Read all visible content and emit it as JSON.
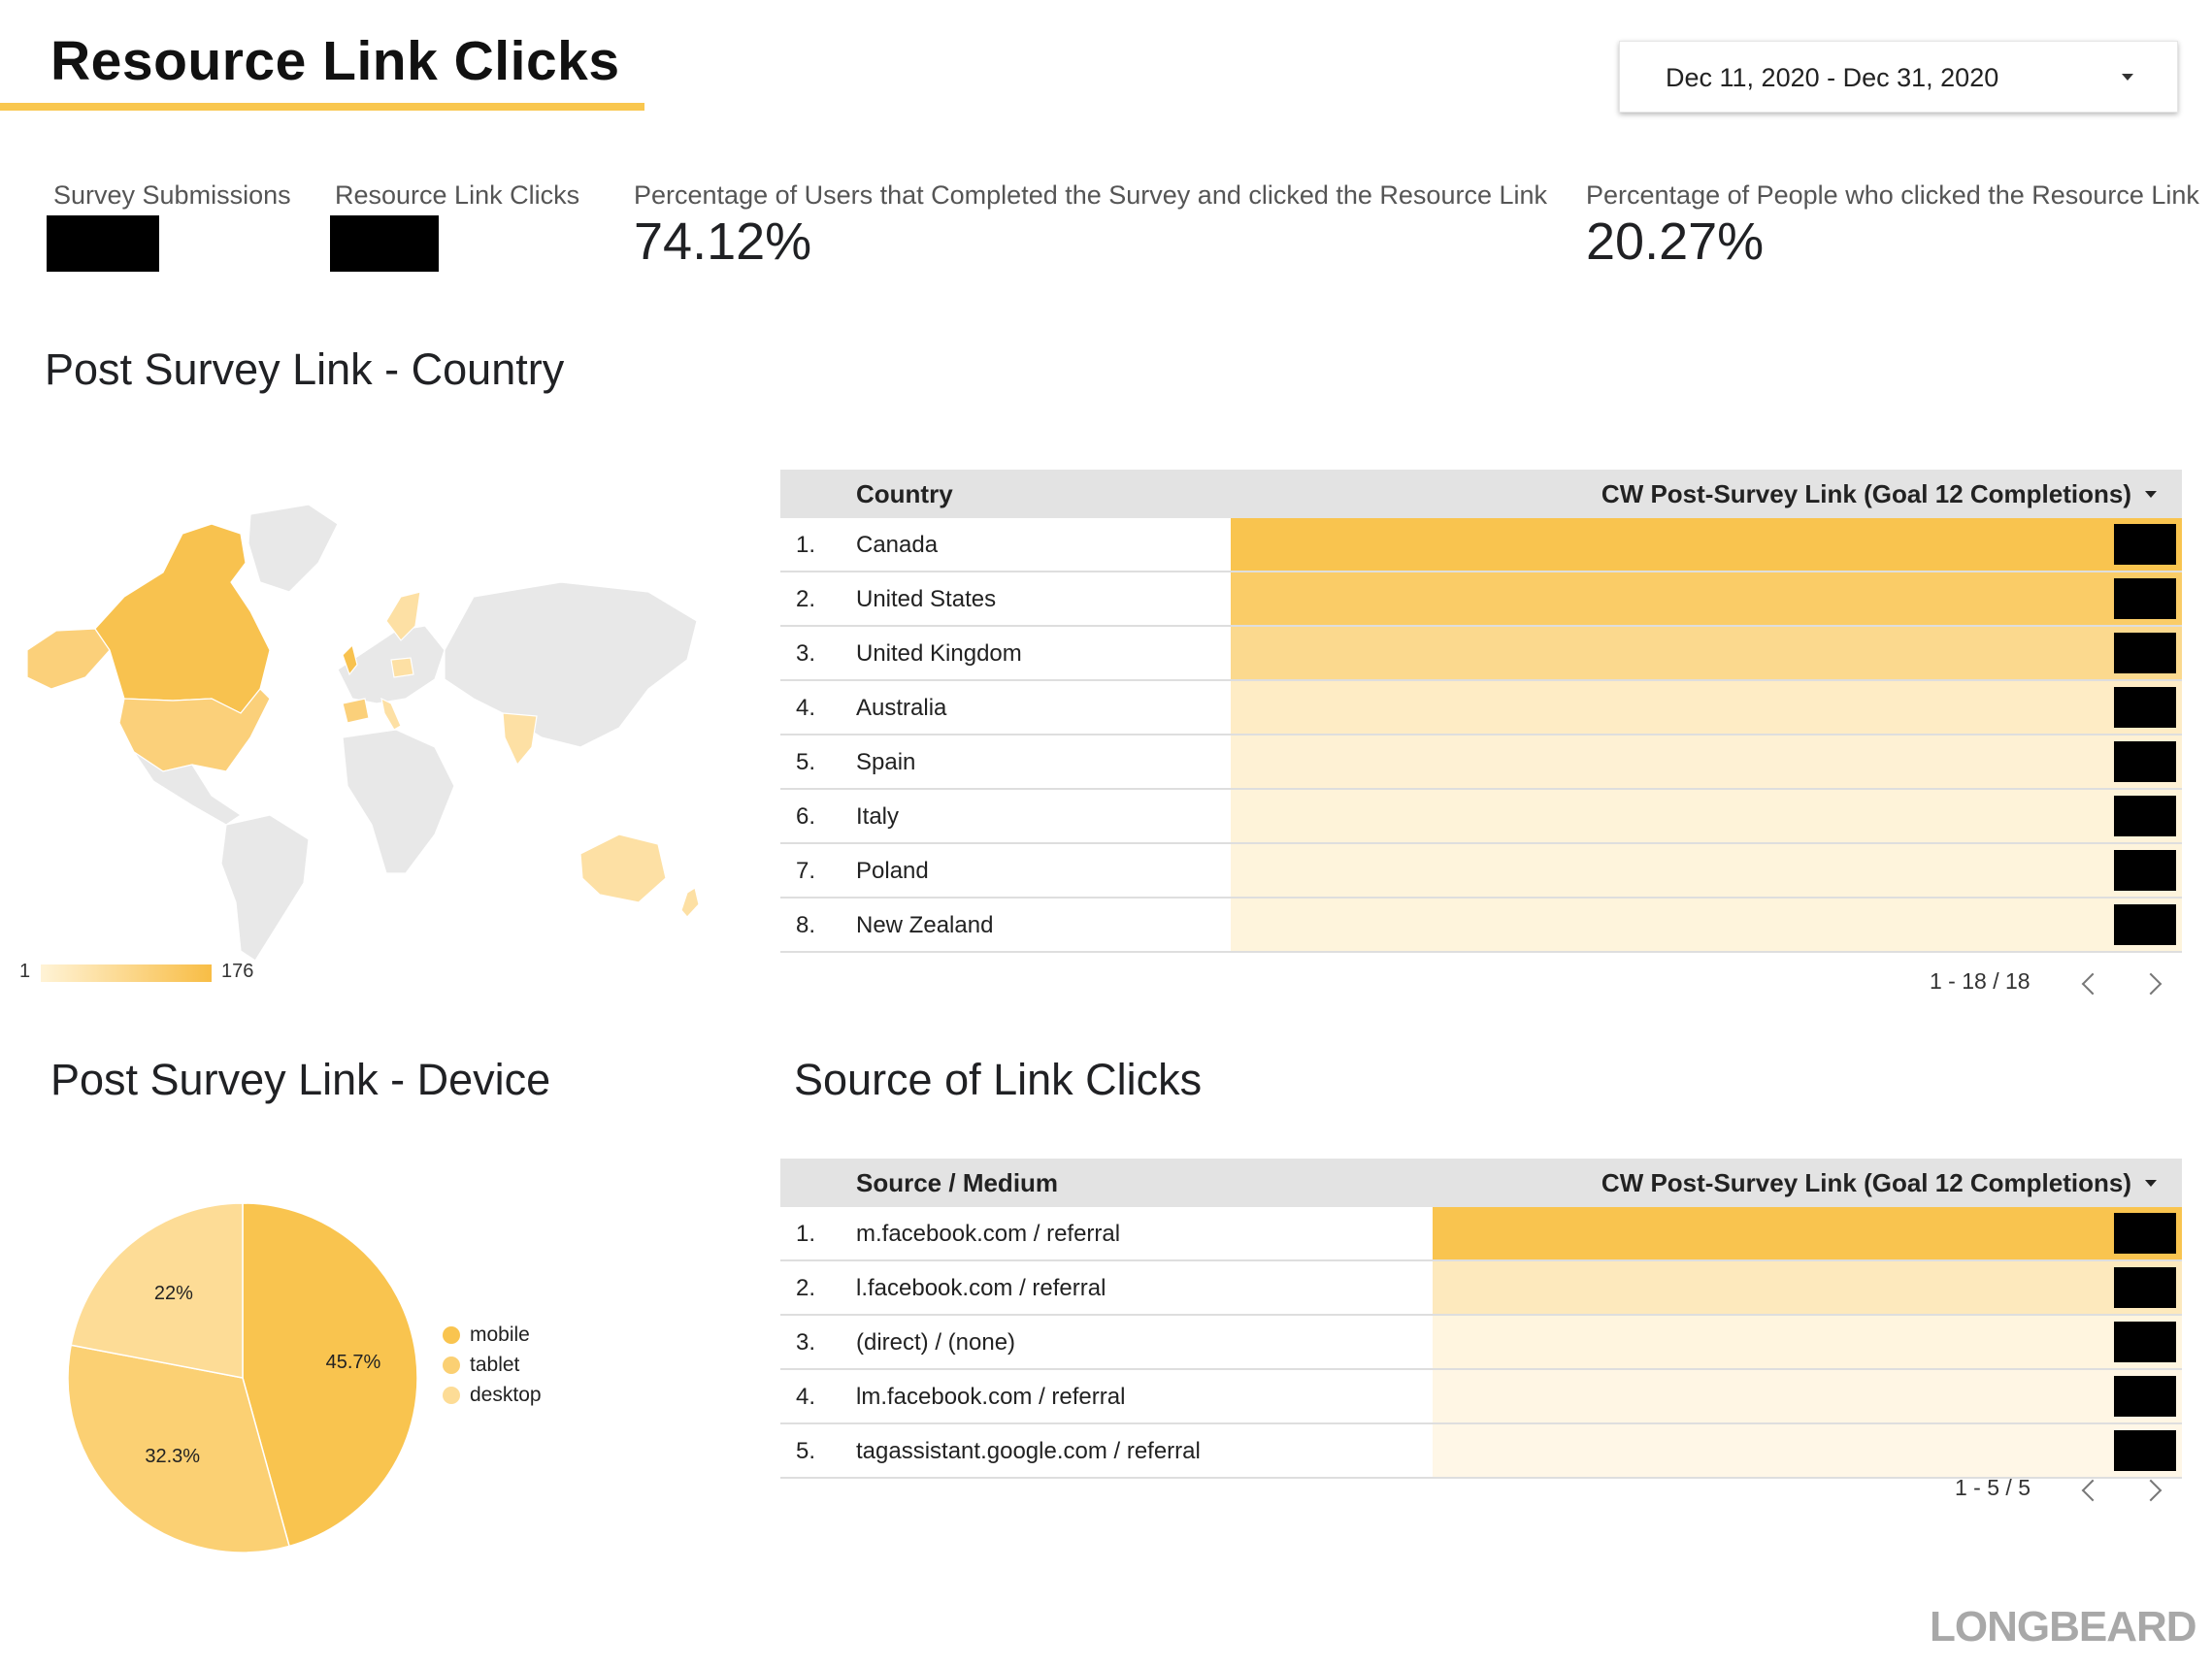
{
  "header": {
    "title": "Resource Link Clicks",
    "date_range": "Dec 11, 2020 - Dec 31, 2020"
  },
  "kpis": [
    {
      "label": "Survey Submissions",
      "value": ""
    },
    {
      "label": "Resource Link Clicks",
      "value": ""
    },
    {
      "label": "Percentage of Users that Completed the Survey and clicked the Resource Link",
      "value": "74.12%"
    },
    {
      "label": "Percentage of People who clicked the Resource Link",
      "value": "20.27%"
    }
  ],
  "country_section": {
    "title": "Post Survey Link - Country",
    "map_legend": {
      "min": "1",
      "max": "176"
    },
    "table": {
      "col1": "Country",
      "col2": "CW Post-Survey Link (Goal 12 Completions)",
      "rows": [
        {
          "rank": "1.",
          "name": "Canada",
          "share": 1.0
        },
        {
          "rank": "2.",
          "name": "United States",
          "share": 0.85
        },
        {
          "rank": "3.",
          "name": "United Kingdom",
          "share": 0.6
        },
        {
          "rank": "4.",
          "name": "Australia",
          "share": 0.25
        },
        {
          "rank": "5.",
          "name": "Spain",
          "share": 0.15
        },
        {
          "rank": "6.",
          "name": "Italy",
          "share": 0.12
        },
        {
          "rank": "7.",
          "name": "Poland",
          "share": 0.1
        },
        {
          "rank": "8.",
          "name": "New Zealand",
          "share": 0.1
        }
      ],
      "pager": "1 - 18 / 18"
    }
  },
  "device_section": {
    "title": "Post Survey Link - Device",
    "chart_data": {
      "type": "pie",
      "slices": [
        {
          "name": "mobile",
          "label": "45.7%",
          "value": 45.7,
          "color": "#f9c44f"
        },
        {
          "name": "tablet",
          "label": "32.3%",
          "value": 32.3,
          "color": "#fbd073"
        },
        {
          "name": "desktop",
          "label": "22%",
          "value": 22.0,
          "color": "#fddc96"
        }
      ],
      "legend_placement": "right"
    }
  },
  "source_section": {
    "title": "Source of Link Clicks",
    "table": {
      "col1": "Source / Medium",
      "col2": "CW Post-Survey Link (Goal 12 Completions)",
      "rows": [
        {
          "rank": "1.",
          "name": "m.facebook.com / referral",
          "share": 1.0
        },
        {
          "rank": "2.",
          "name": "l.facebook.com / referral",
          "share": 0.3
        },
        {
          "rank": "3.",
          "name": "(direct) / (none)",
          "share": 0.08
        },
        {
          "rank": "4.",
          "name": "lm.facebook.com / referral",
          "share": 0.05
        },
        {
          "rank": "5.",
          "name": "tagassistant.google.com / referral",
          "share": 0.03
        }
      ],
      "pager": "1 - 5 / 5"
    }
  },
  "brand": "LONGBEARD"
}
